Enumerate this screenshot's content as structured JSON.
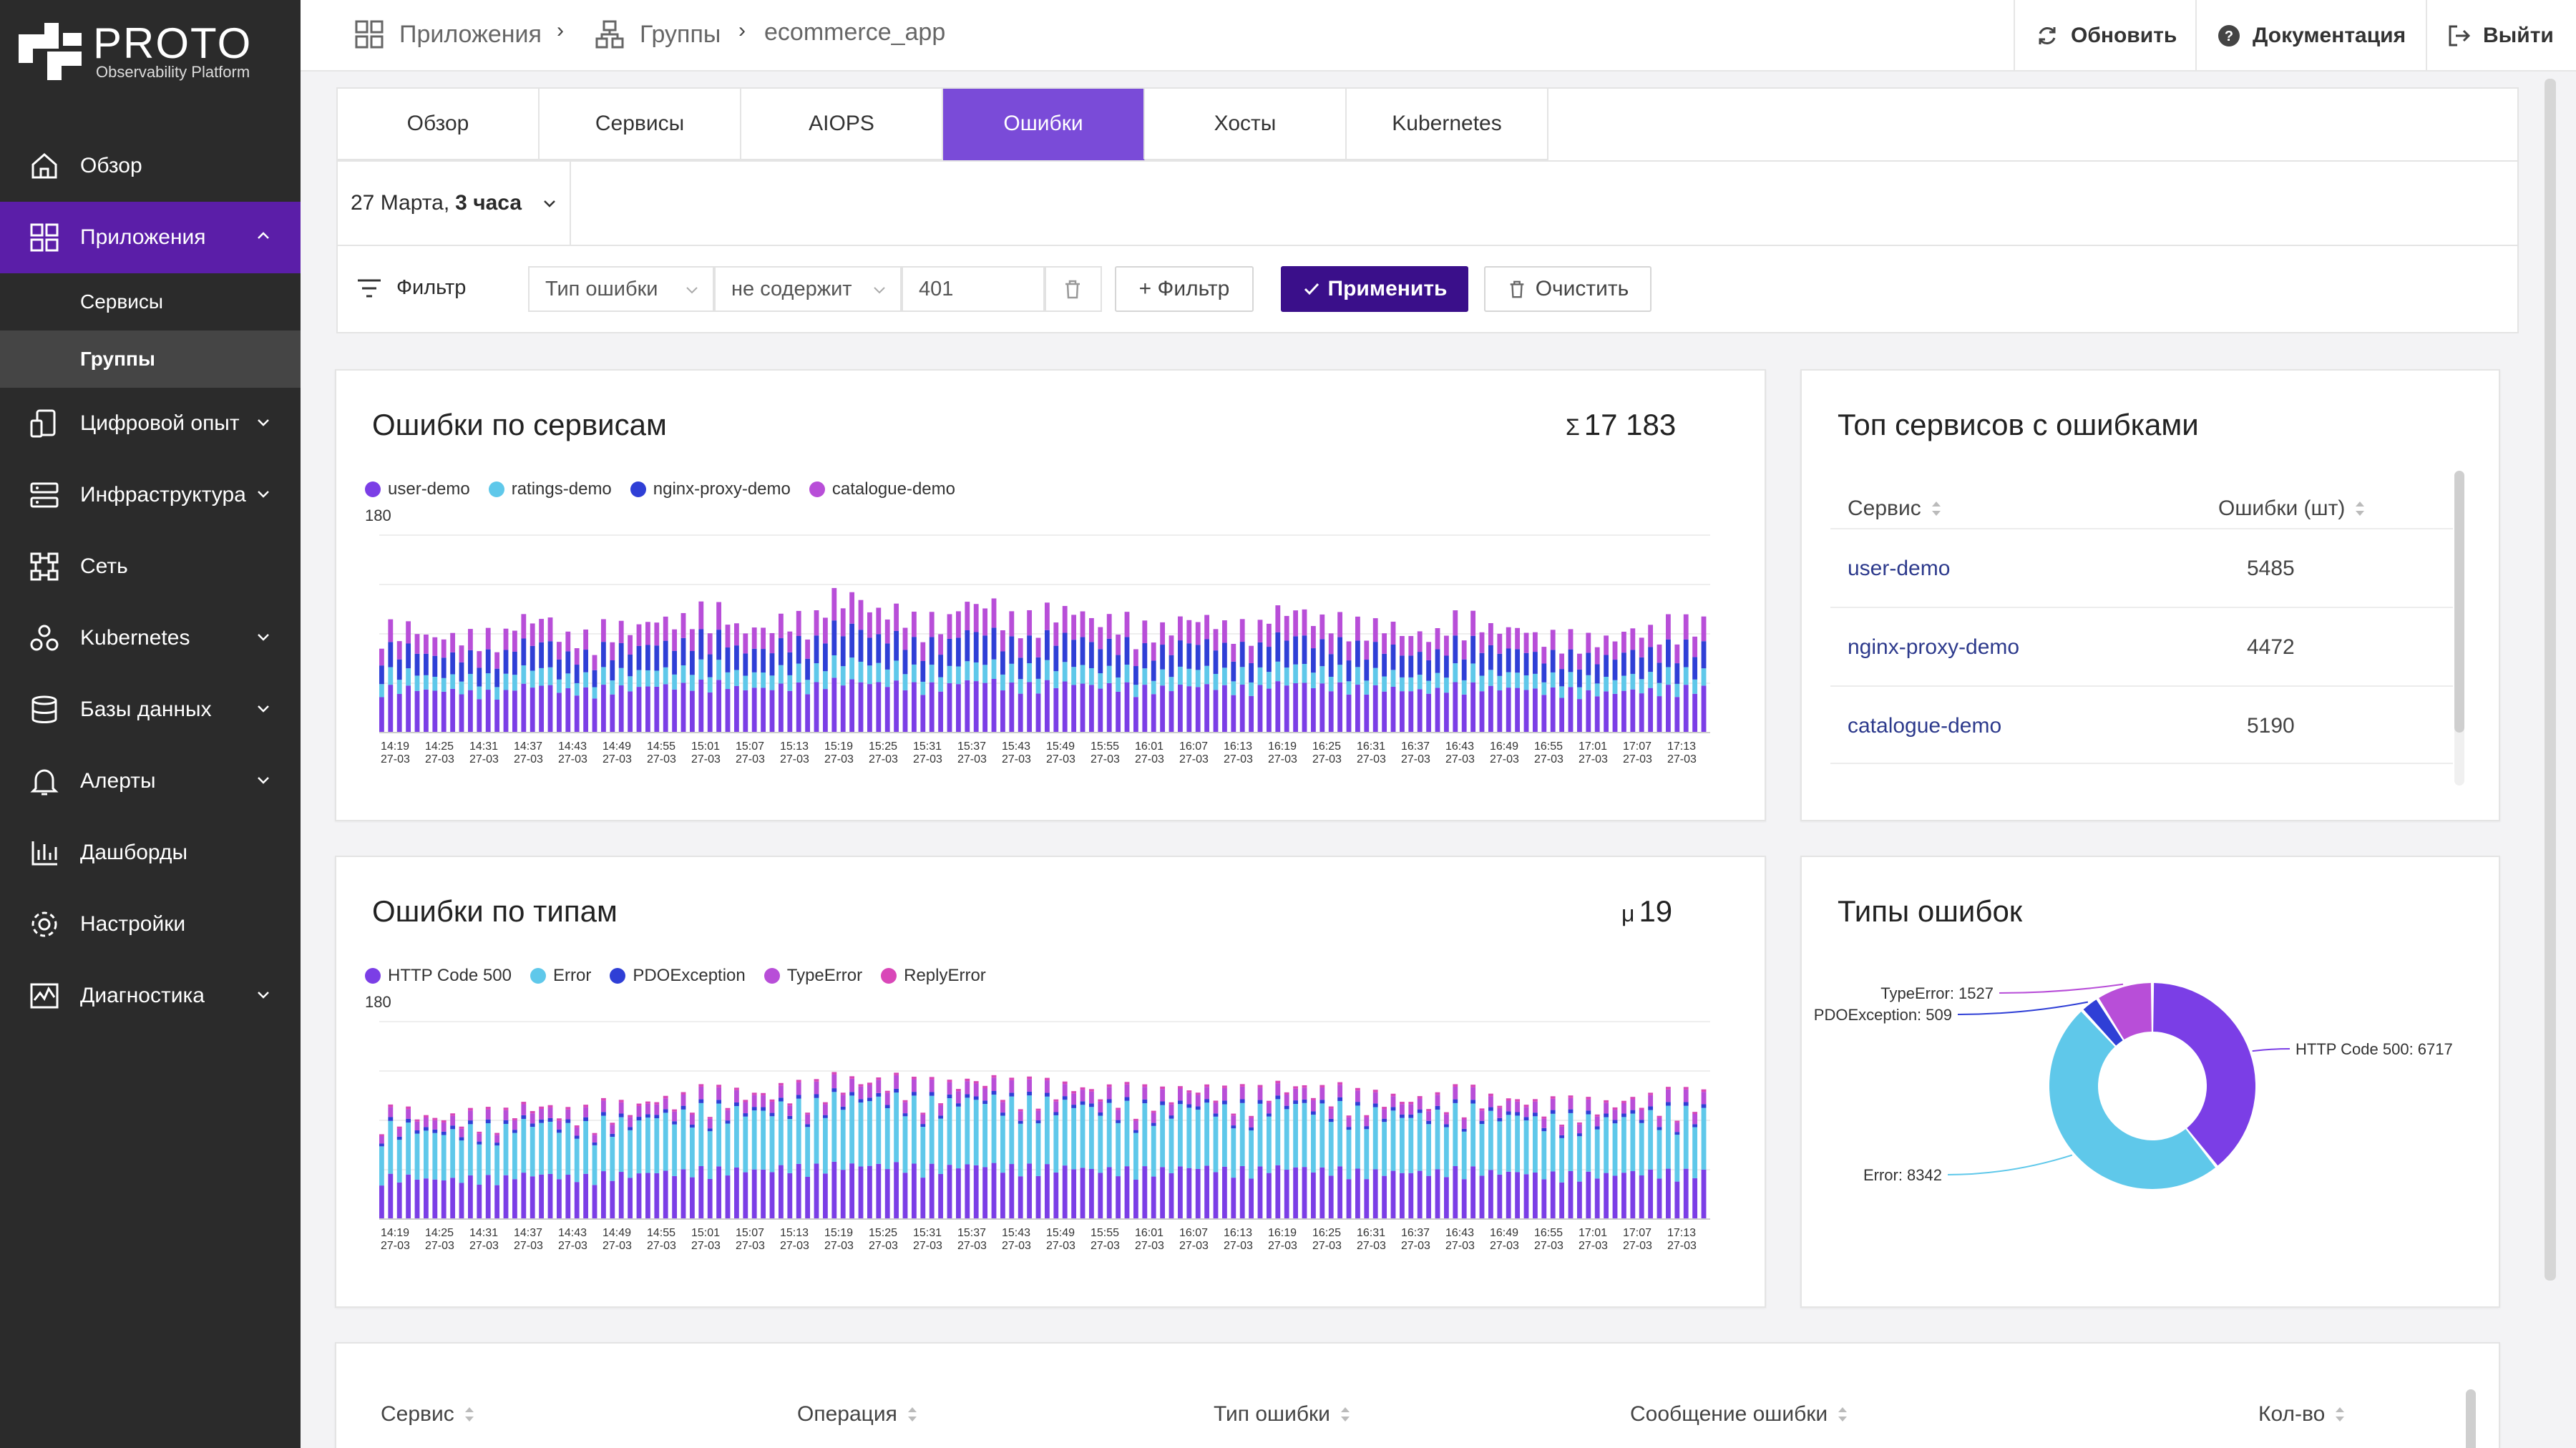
{
  "brand": {
    "name": "PROTO",
    "subtitle": "Observability Platform"
  },
  "sidebar": {
    "items": [
      {
        "label": "Обзор",
        "icon": "home-icon"
      },
      {
        "label": "Приложения",
        "icon": "apps-grid-icon",
        "active": true
      },
      {
        "label": "Цифровой опыт",
        "icon": "digital-experience-icon"
      },
      {
        "label": "Инфраструктура",
        "icon": "server-icon"
      },
      {
        "label": "Сеть",
        "icon": "network-icon"
      },
      {
        "label": "Kubernetes",
        "icon": "kubernetes-icon"
      },
      {
        "label": "Базы данных",
        "icon": "database-icon"
      },
      {
        "label": "Алерты",
        "icon": "bell-icon"
      },
      {
        "label": "Дашборды",
        "icon": "dashboard-icon"
      },
      {
        "label": "Настройки",
        "icon": "gear-icon"
      },
      {
        "label": "Диагностика",
        "icon": "diagnostics-icon"
      }
    ],
    "subitems": [
      {
        "label": "Сервисы"
      },
      {
        "label": "Группы",
        "active": true
      }
    ]
  },
  "breadcrumb": {
    "item1": "Приложения",
    "item2": "Группы",
    "item3": "ecommerce_app"
  },
  "topbar": {
    "refresh": "Обновить",
    "docs": "Документация",
    "logout": "Выйти"
  },
  "tabs": [
    "Обзор",
    "Сервисы",
    "AIOPS",
    "Ошибки",
    "Хосты",
    "Kubernetes"
  ],
  "date": {
    "day": "27 Марта,",
    "range": "3 часа"
  },
  "filter": {
    "label": "Фильтр",
    "field": "Тип ошибки",
    "operator": "не содержит",
    "value": "401",
    "add": "+ Фильтр",
    "apply": "Применить",
    "clear": "Очистить"
  },
  "colors": {
    "accent": "#5b1ea8",
    "violet": "#7b3ee6",
    "cyan": "#5fc8ea",
    "blue": "#2f3fd6",
    "magenta": "#b84ed8",
    "pink": "#d947b8"
  },
  "errors_by_service": {
    "title": "Ошибки по сервисам",
    "total_symbol": "Σ",
    "total": "17 183",
    "legend": [
      "user-demo",
      "ratings-demo",
      "nginx-proxy-demo",
      "catalogue-demo"
    ]
  },
  "errors_by_type": {
    "title": "Ошибки по типам",
    "metric_symbol": "μ",
    "metric": "19",
    "legend": [
      "HTTP Code 500",
      "Error",
      "PDOException",
      "TypeError",
      "ReplyError"
    ]
  },
  "top_services": {
    "title": "Топ сервисов с ошибками",
    "col_service": "Сервис",
    "col_errors": "Ошибки (шт)",
    "rows": [
      {
        "service": "user-demo",
        "errors": "5485"
      },
      {
        "service": "nginx-proxy-demo",
        "errors": "4472"
      },
      {
        "service": "catalogue-demo",
        "errors": "5190"
      }
    ]
  },
  "error_types": {
    "title": "Типы ошибок",
    "labels": [
      "HTTP Code 500: 6717",
      "Error: 8342",
      "PDOException: 509",
      "TypeError: 1527"
    ]
  },
  "bottom_table": {
    "cols": [
      "Сервис",
      "Операция",
      "Тип ошибки",
      "Сообщение ошибки",
      "Кол-во"
    ]
  },
  "chart_data": [
    {
      "type": "bar",
      "title": "Ошибки по сервисам",
      "stacked": true,
      "ylim": [
        0,
        180
      ],
      "ytick": "180",
      "categories": [
        "14:19 27-03",
        "14:25 27-03",
        "14:31 27-03",
        "14:37 27-03",
        "14:43 27-03",
        "14:49 27-03",
        "14:55 27-03",
        "15:01 27-03",
        "15:07 27-03",
        "15:13 27-03",
        "15:19 27-03",
        "15:25 27-03",
        "15:31 27-03",
        "15:37 27-03",
        "15:43 27-03",
        "15:49 27-03",
        "15:55 27-03",
        "16:01 27-03",
        "16:07 27-03",
        "16:13 27-03",
        "16:19 27-03",
        "16:25 27-03",
        "16:31 27-03",
        "16:37 27-03",
        "16:43 27-03",
        "16:49 27-03",
        "16:55 27-03",
        "17:01 27-03",
        "17:07 27-03",
        "17:13 27-03"
      ],
      "series": [
        {
          "name": "user-demo",
          "values": [
            38,
            36,
            34,
            40,
            36,
            38,
            40,
            42,
            38,
            40,
            44,
            42,
            40,
            44,
            40,
            42,
            40,
            38,
            40,
            38,
            42,
            40,
            38,
            36,
            40,
            38,
            36,
            34,
            36,
            38
          ]
        },
        {
          "name": "ratings-demo",
          "values": [
            14,
            12,
            13,
            15,
            12,
            14,
            14,
            16,
            13,
            15,
            18,
            16,
            14,
            16,
            15,
            16,
            14,
            13,
            15,
            14,
            16,
            14,
            14,
            12,
            15,
            13,
            12,
            12,
            13,
            14
          ]
        },
        {
          "name": "nginx-proxy-demo",
          "values": [
            20,
            18,
            19,
            22,
            18,
            20,
            22,
            24,
            20,
            22,
            28,
            24,
            22,
            26,
            22,
            24,
            22,
            20,
            22,
            20,
            24,
            22,
            21,
            19,
            22,
            20,
            18,
            18,
            20,
            22
          ]
        },
        {
          "name": "catalogue-demo",
          "values": [
            18,
            16,
            17,
            20,
            16,
            18,
            20,
            22,
            18,
            20,
            26,
            22,
            20,
            24,
            20,
            22,
            20,
            18,
            20,
            18,
            22,
            20,
            19,
            17,
            20,
            18,
            16,
            16,
            18,
            20
          ]
        }
      ]
    },
    {
      "type": "bar",
      "title": "Ошибки по типам",
      "stacked": true,
      "ylim": [
        0,
        180
      ],
      "ytick": "180",
      "categories": [
        "14:19 27-03",
        "14:25 27-03",
        "14:31 27-03",
        "14:37 27-03",
        "14:43 27-03",
        "14:49 27-03",
        "14:55 27-03",
        "15:01 27-03",
        "15:07 27-03",
        "15:13 27-03",
        "15:19 27-03",
        "15:25 27-03",
        "15:31 27-03",
        "15:37 27-03",
        "15:43 27-03",
        "15:49 27-03",
        "15:55 27-03",
        "16:01 27-03",
        "16:07 27-03",
        "16:13 27-03",
        "16:19 27-03",
        "16:25 27-03",
        "16:31 27-03",
        "16:37 27-03",
        "16:43 27-03",
        "16:49 27-03",
        "16:55 27-03",
        "17:01 27-03",
        "17:07 27-03",
        "17:13 27-03"
      ],
      "series": [
        {
          "name": "HTTP Code 500",
          "values": [
            36,
            34,
            35,
            38,
            36,
            38,
            40,
            42,
            42,
            44,
            46,
            46,
            44,
            46,
            44,
            44,
            42,
            42,
            44,
            42,
            44,
            42,
            40,
            40,
            42,
            40,
            38,
            38,
            40,
            40
          ]
        },
        {
          "name": "Error",
          "values": [
            42,
            40,
            41,
            44,
            42,
            44,
            48,
            50,
            50,
            52,
            56,
            56,
            54,
            56,
            54,
            54,
            52,
            50,
            52,
            50,
            54,
            52,
            50,
            48,
            50,
            48,
            46,
            46,
            48,
            50
          ]
        },
        {
          "name": "PDOException",
          "values": [
            3,
            3,
            3,
            3,
            3,
            3,
            3,
            3,
            3,
            3,
            3,
            3,
            3,
            3,
            3,
            3,
            3,
            3,
            3,
            3,
            3,
            3,
            3,
            3,
            3,
            3,
            3,
            3,
            3,
            3
          ]
        },
        {
          "name": "TypeError",
          "values": [
            8,
            8,
            8,
            9,
            8,
            9,
            9,
            10,
            10,
            10,
            11,
            11,
            10,
            11,
            10,
            10,
            10,
            10,
            10,
            10,
            10,
            10,
            9,
            9,
            10,
            9,
            9,
            9,
            9,
            10
          ]
        },
        {
          "name": "ReplyError",
          "values": [
            2,
            2,
            2,
            2,
            2,
            2,
            2,
            2,
            2,
            2,
            2,
            2,
            2,
            2,
            2,
            2,
            2,
            2,
            2,
            2,
            2,
            2,
            2,
            2,
            2,
            2,
            2,
            2,
            2,
            2
          ]
        }
      ]
    },
    {
      "type": "pie",
      "donut": true,
      "title": "Типы ошибок",
      "categories": [
        "HTTP Code 500",
        "Error",
        "PDOException",
        "TypeError"
      ],
      "values": [
        6717,
        8342,
        509,
        1527
      ]
    }
  ]
}
